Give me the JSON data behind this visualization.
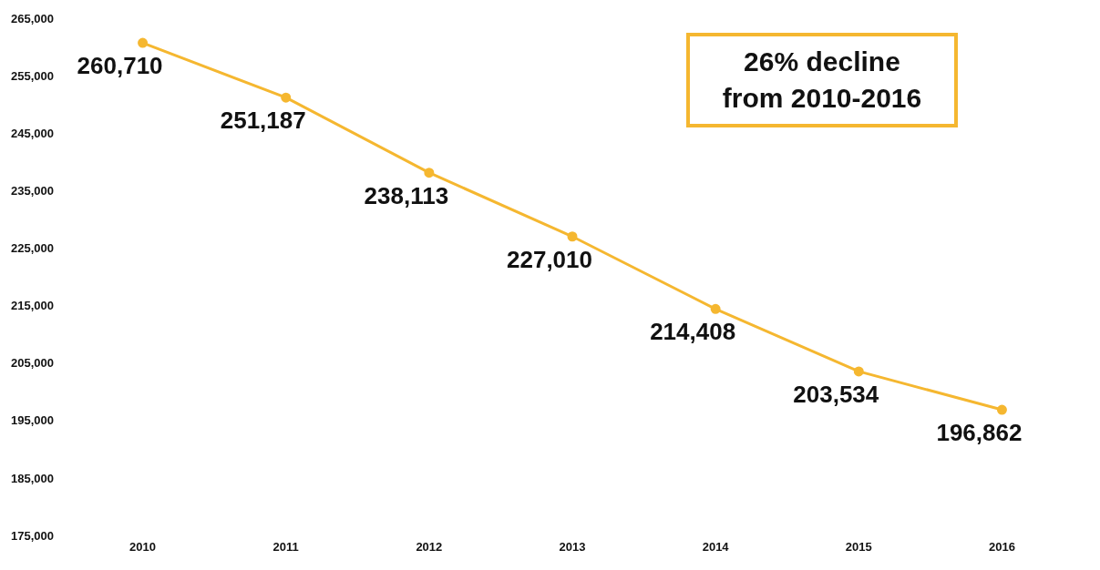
{
  "chart_data": {
    "type": "line",
    "categories": [
      "2010",
      "2011",
      "2012",
      "2013",
      "2014",
      "2015",
      "2016"
    ],
    "series": [
      {
        "color": "#f5b730",
        "values": [
          260710,
          251187,
          238113,
          227010,
          214408,
          203534,
          196862
        ],
        "value_labels": [
          "260,710",
          "251,187",
          "238,113",
          "227,010",
          "214,408",
          "203,534",
          "196,862"
        ]
      }
    ],
    "ylim": [
      175000,
      265000
    ],
    "yticks": [
      {
        "value": 175000,
        "label": "175,000"
      },
      {
        "value": 185000,
        "label": "185,000"
      },
      {
        "value": 195000,
        "label": "195,000"
      },
      {
        "value": 205000,
        "label": "205,000"
      },
      {
        "value": 215000,
        "label": "215,000"
      },
      {
        "value": 225000,
        "label": "225,000"
      },
      {
        "value": 235000,
        "label": "235,000"
      },
      {
        "value": 245000,
        "label": "245,000"
      },
      {
        "value": 255000,
        "label": "255,000"
      },
      {
        "value": 265000,
        "label": "265,000"
      }
    ],
    "marker": "circle",
    "line_style": "solid",
    "grid": false,
    "legend": false,
    "annotations": [
      "26% decline\nfrom 2010-2016"
    ]
  }
}
